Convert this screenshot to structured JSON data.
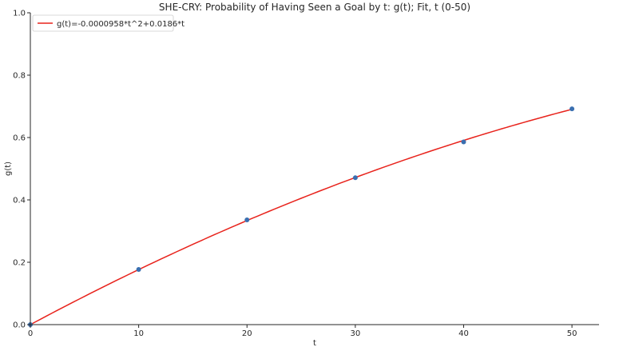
{
  "chart_data": {
    "type": "scatter",
    "title": "SHE-CRY: Probability of Having Seen a Goal by t: g(t); Fit, t (0-50)",
    "xlabel": "t",
    "ylabel": "g(t)",
    "xlim": [
      0,
      52.5
    ],
    "ylim": [
      0,
      1.0
    ],
    "x_ticks": [
      "0",
      "10",
      "20",
      "30",
      "40",
      "50"
    ],
    "y_ticks": [
      "0.0",
      "0.2",
      "0.4",
      "0.6",
      "0.8",
      "1.0"
    ],
    "x_tick_values": [
      0,
      10,
      20,
      30,
      40,
      50
    ],
    "y_tick_values": [
      0,
      0.2,
      0.4,
      0.6,
      0.8,
      1.0
    ],
    "grid": false,
    "legend_position": "top-left",
    "series": [
      {
        "kind": "scatter",
        "color": "#3a6fb0",
        "x": [
          0,
          10,
          20,
          30,
          40,
          50
        ],
        "y": [
          0.0,
          0.177,
          0.336,
          0.471,
          0.586,
          0.692
        ]
      },
      {
        "kind": "line",
        "name": "g(t)=-0.0000958*t^2+0.0186*t",
        "color": "#e8231c",
        "coefficients": {
          "a": -9.58e-05,
          "b": 0.0186
        },
        "x_range": [
          0,
          50
        ]
      }
    ]
  }
}
